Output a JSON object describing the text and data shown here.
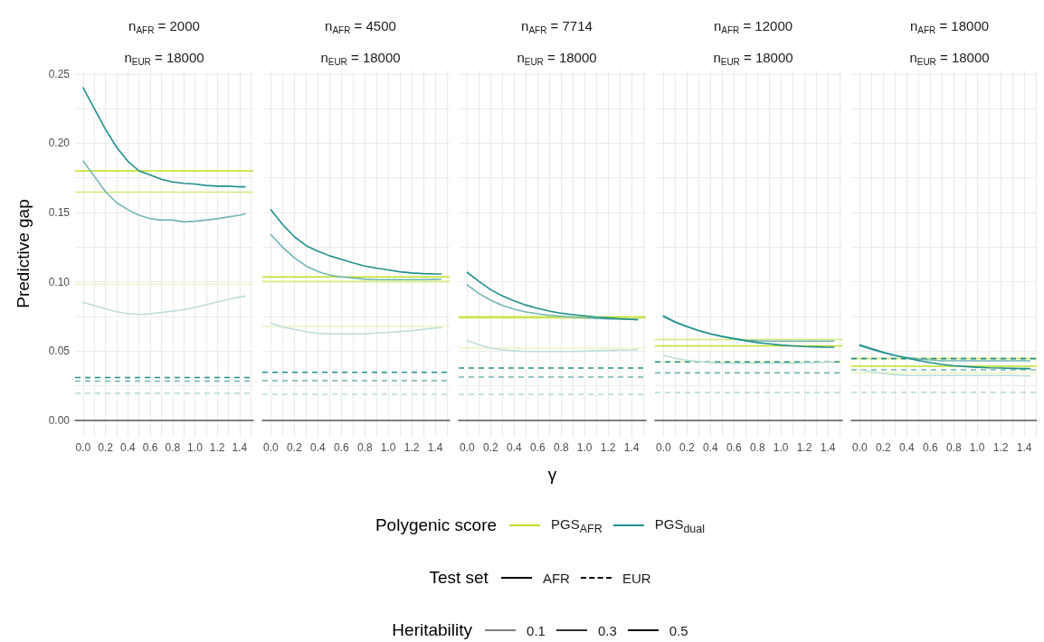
{
  "chart_data": [
    {
      "type": "line",
      "title": "n$_{AFR}$ = 2000",
      "subtitle": "n$_{EUR}$ = 18000",
      "ylabel": "Predictive gap",
      "grid": true,
      "xlim": [
        -0.0725,
        1.5225
      ],
      "ylim": [
        -0.012,
        0.2525
      ],
      "xticks": [
        {
          "value": 0,
          "label": "0.0"
        },
        {
          "value": 0.1,
          "label": null
        },
        {
          "value": 0.2,
          "label": "0.2"
        },
        {
          "value": 0.3,
          "label": null
        },
        {
          "value": 0.4,
          "label": "0.4"
        },
        {
          "value": 0.5,
          "label": null
        },
        {
          "value": 0.6,
          "label": "0.6"
        },
        {
          "value": 0.7,
          "label": null
        },
        {
          "value": 0.8,
          "label": "0.8"
        },
        {
          "value": 0.9,
          "label": null
        },
        {
          "value": 1,
          "label": "1.0"
        },
        {
          "value": 1.1,
          "label": null
        },
        {
          "value": 1.2,
          "label": "1.2"
        },
        {
          "value": 1.3,
          "label": null
        },
        {
          "value": 1.4,
          "label": "1.4"
        },
        {
          "value": 1.5,
          "label": null
        }
      ],
      "yticks": [
        {
          "value": 0,
          "label": "0.00"
        },
        {
          "value": 0.025,
          "label": null
        },
        {
          "value": 0.05,
          "label": "0.05"
        },
        {
          "value": 0.075,
          "label": null
        },
        {
          "value": 0.1,
          "label": "0.10"
        },
        {
          "value": 0.125,
          "label": null
        },
        {
          "value": 0.15,
          "label": "0.15"
        },
        {
          "value": 0.175,
          "label": null
        },
        {
          "value": 0.2,
          "label": "0.20"
        },
        {
          "value": 0.225,
          "label": null
        },
        {
          "value": 0.25,
          "label": "0.25"
        }
      ],
      "x": [
        0,
        0.1,
        0.2,
        0.3,
        0.4,
        0.5,
        0.6,
        0.7,
        0.8,
        0.9,
        1,
        1.1,
        1.2,
        1.3,
        1.4,
        1.45
      ],
      "ref_lines": [
        {
          "axis": "y",
          "value": 0.18,
          "color": "#bddf26"
        },
        {
          "axis": "y",
          "value": 0.1647,
          "color": "#d3e979"
        },
        {
          "axis": "y",
          "value": 0.098,
          "color": "#ebf5c4"
        },
        {
          "axis": "y",
          "value": 0.0308,
          "color": "#21908c",
          "line_style": "dashed"
        },
        {
          "axis": "y",
          "value": 0.0282,
          "color": "#73b5b3",
          "line_style": "dashed"
        },
        {
          "axis": "y",
          "value": 0.0194,
          "color": "#bcdddc",
          "line_style": "dashed"
        }
      ],
      "series": [
        {
          "color": "#bcdddc",
          "values": [
            0.085,
            0.0827,
            0.0804,
            0.0783,
            0.0768,
            0.0763,
            0.0768,
            0.0778,
            0.0787,
            0.0798,
            0.0814,
            0.0833,
            0.0853,
            0.0873,
            0.0888,
            0.0895
          ]
        },
        {
          "color": "#73b5b3",
          "values": [
            0.187,
            0.176,
            0.165,
            0.157,
            0.152,
            0.148,
            0.1455,
            0.1445,
            0.1445,
            0.1432,
            0.1437,
            0.1445,
            0.1455,
            0.1468,
            0.148,
            0.149
          ]
        },
        {
          "color": "#21908c",
          "values": [
            0.24,
            0.225,
            0.21,
            0.197,
            0.187,
            0.18,
            0.177,
            0.174,
            0.172,
            0.171,
            0.1705,
            0.1695,
            0.169,
            0.169,
            0.1685,
            0.1685
          ]
        }
      ]
    },
    {
      "type": "line",
      "title": "n$_{AFR}$ = 4500",
      "subtitle": "n$_{EUR}$ = 18000",
      "grid": true,
      "tick_labels": "x",
      "xlim": [
        -0.0725,
        1.5225
      ],
      "ylim": [
        -0.012,
        0.2525
      ],
      "xticks": [
        {
          "value": 0,
          "label": "0.0"
        },
        {
          "value": 0.1,
          "label": null
        },
        {
          "value": 0.2,
          "label": "0.2"
        },
        {
          "value": 0.3,
          "label": null
        },
        {
          "value": 0.4,
          "label": "0.4"
        },
        {
          "value": 0.5,
          "label": null
        },
        {
          "value": 0.6,
          "label": "0.6"
        },
        {
          "value": 0.7,
          "label": null
        },
        {
          "value": 0.8,
          "label": "0.8"
        },
        {
          "value": 0.9,
          "label": null
        },
        {
          "value": 1,
          "label": "1.0"
        },
        {
          "value": 1.1,
          "label": null
        },
        {
          "value": 1.2,
          "label": "1.2"
        },
        {
          "value": 1.3,
          "label": null
        },
        {
          "value": 1.4,
          "label": "1.4"
        },
        {
          "value": 1.5,
          "label": null
        }
      ],
      "yticks": [
        {
          "value": 0,
          "label": null
        },
        {
          "value": 0.025,
          "label": null
        },
        {
          "value": 0.05,
          "label": null
        },
        {
          "value": 0.075,
          "label": null
        },
        {
          "value": 0.1,
          "label": null
        },
        {
          "value": 0.125,
          "label": null
        },
        {
          "value": 0.15,
          "label": null
        },
        {
          "value": 0.175,
          "label": null
        },
        {
          "value": 0.2,
          "label": null
        },
        {
          "value": 0.225,
          "label": null
        },
        {
          "value": 0.25,
          "label": null
        }
      ],
      "x": [
        0,
        0.1,
        0.2,
        0.3,
        0.4,
        0.5,
        0.6,
        0.7,
        0.8,
        0.9,
        1,
        1.1,
        1.2,
        1.3,
        1.4,
        1.45
      ],
      "ref_lines": [
        {
          "axis": "y",
          "value": 0.1034,
          "color": "#bddf26"
        },
        {
          "axis": "y",
          "value": 0.1001,
          "color": "#d3e979"
        },
        {
          "axis": "y",
          "value": 0.0677,
          "color": "#ebf5c4"
        },
        {
          "axis": "y",
          "value": 0.0345,
          "color": "#21908c",
          "line_style": "dashed"
        },
        {
          "axis": "y",
          "value": 0.0285,
          "color": "#73b5b3",
          "line_style": "dashed"
        },
        {
          "axis": "y",
          "value": 0.0187,
          "color": "#bcdddc",
          "line_style": "dashed"
        }
      ],
      "series": [
        {
          "color": "#bcdddc",
          "values": [
            0.0701,
            0.0672,
            0.0656,
            0.0638,
            0.0627,
            0.0623,
            0.0623,
            0.0623,
            0.0623,
            0.0629,
            0.0633,
            0.064,
            0.0646,
            0.0656,
            0.0665,
            0.0667
          ]
        },
        {
          "color": "#73b5b3",
          "values": [
            0.134,
            0.1249,
            0.1172,
            0.1113,
            0.1074,
            0.1047,
            0.1034,
            0.1026,
            0.1019,
            0.1015,
            0.1015,
            0.1015,
            0.1015,
            0.1015,
            0.1017,
            0.1018
          ]
        },
        {
          "color": "#21908c",
          "values": [
            0.152,
            0.1413,
            0.1325,
            0.126,
            0.122,
            0.1187,
            0.1161,
            0.1135,
            0.1113,
            0.1098,
            0.1085,
            0.1071,
            0.1063,
            0.1058,
            0.1056,
            0.1056
          ]
        }
      ]
    },
    {
      "type": "line",
      "title": "n$_{AFR}$ = 7714",
      "subtitle": "n$_{EUR}$ = 18000",
      "xlabel": "γ",
      "grid": true,
      "tick_labels": "x",
      "xlim": [
        -0.0725,
        1.5225
      ],
      "ylim": [
        -0.012,
        0.2525
      ],
      "xticks": [
        {
          "value": 0,
          "label": "0.0"
        },
        {
          "value": 0.1,
          "label": null
        },
        {
          "value": 0.2,
          "label": "0.2"
        },
        {
          "value": 0.3,
          "label": null
        },
        {
          "value": 0.4,
          "label": "0.4"
        },
        {
          "value": 0.5,
          "label": null
        },
        {
          "value": 0.6,
          "label": "0.6"
        },
        {
          "value": 0.7,
          "label": null
        },
        {
          "value": 0.8,
          "label": "0.8"
        },
        {
          "value": 0.9,
          "label": null
        },
        {
          "value": 1,
          "label": "1.0"
        },
        {
          "value": 1.1,
          "label": null
        },
        {
          "value": 1.2,
          "label": "1.2"
        },
        {
          "value": 1.3,
          "label": null
        },
        {
          "value": 1.4,
          "label": "1.4"
        },
        {
          "value": 1.5,
          "label": null
        }
      ],
      "yticks": [
        {
          "value": 0,
          "label": null
        },
        {
          "value": 0.025,
          "label": null
        },
        {
          "value": 0.05,
          "label": null
        },
        {
          "value": 0.075,
          "label": null
        },
        {
          "value": 0.1,
          "label": null
        },
        {
          "value": 0.125,
          "label": null
        },
        {
          "value": 0.15,
          "label": null
        },
        {
          "value": 0.175,
          "label": null
        },
        {
          "value": 0.2,
          "label": null
        },
        {
          "value": 0.225,
          "label": null
        },
        {
          "value": 0.25,
          "label": null
        }
      ],
      "x": [
        0,
        0.1,
        0.2,
        0.3,
        0.4,
        0.5,
        0.6,
        0.7,
        0.8,
        0.9,
        1,
        1.1,
        1.2,
        1.3,
        1.4,
        1.45
      ],
      "ref_lines": [
        {
          "axis": "y",
          "value": 0.0745,
          "color": "#bddf26"
        },
        {
          "axis": "y",
          "value": 0.0737,
          "color": "#d3e979"
        },
        {
          "axis": "y",
          "value": 0.052,
          "color": "#ebf5c4"
        },
        {
          "axis": "y",
          "value": 0.0376,
          "color": "#21908c",
          "line_style": "dashed"
        },
        {
          "axis": "y",
          "value": 0.0311,
          "color": "#73b5b3",
          "line_style": "dashed"
        },
        {
          "axis": "y",
          "value": 0.0186,
          "color": "#bcdddc",
          "line_style": "dashed"
        }
      ],
      "series": [
        {
          "color": "#bcdddc",
          "values": [
            0.0576,
            0.0545,
            0.052,
            0.0507,
            0.0501,
            0.0496,
            0.0496,
            0.0496,
            0.0496,
            0.0496,
            0.0498,
            0.0501,
            0.0503,
            0.0505,
            0.0507,
            0.0509
          ]
        },
        {
          "color": "#73b5b3",
          "values": [
            0.0976,
            0.0914,
            0.0866,
            0.0829,
            0.0801,
            0.0781,
            0.0768,
            0.0757,
            0.075,
            0.0744,
            0.0739,
            0.0735,
            0.0731,
            0.0729,
            0.0727,
            0.0727
          ]
        },
        {
          "color": "#21908c",
          "values": [
            0.1067,
            0.1002,
            0.0942,
            0.0897,
            0.0862,
            0.0831,
            0.0807,
            0.0788,
            0.0772,
            0.0762,
            0.0753,
            0.0744,
            0.0738,
            0.0732,
            0.0727,
            0.0725
          ]
        }
      ]
    },
    {
      "type": "line",
      "title": "n$_{AFR}$ = 12000",
      "subtitle": "n$_{EUR}$ = 18000",
      "grid": true,
      "tick_labels": "x",
      "xlim": [
        -0.0725,
        1.5225
      ],
      "ylim": [
        -0.012,
        0.2525
      ],
      "xticks": [
        {
          "value": 0,
          "label": "0.0"
        },
        {
          "value": 0.1,
          "label": null
        },
        {
          "value": 0.2,
          "label": "0.2"
        },
        {
          "value": 0.3,
          "label": null
        },
        {
          "value": 0.4,
          "label": "0.4"
        },
        {
          "value": 0.5,
          "label": null
        },
        {
          "value": 0.6,
          "label": "0.6"
        },
        {
          "value": 0.7,
          "label": null
        },
        {
          "value": 0.8,
          "label": "0.8"
        },
        {
          "value": 0.9,
          "label": null
        },
        {
          "value": 1,
          "label": "1.0"
        },
        {
          "value": 1.1,
          "label": null
        },
        {
          "value": 1.2,
          "label": "1.2"
        },
        {
          "value": 1.3,
          "label": null
        },
        {
          "value": 1.4,
          "label": "1.4"
        },
        {
          "value": 1.5,
          "label": null
        }
      ],
      "yticks": [
        {
          "value": 0,
          "label": null
        },
        {
          "value": 0.025,
          "label": null
        },
        {
          "value": 0.05,
          "label": null
        },
        {
          "value": 0.075,
          "label": null
        },
        {
          "value": 0.1,
          "label": null
        },
        {
          "value": 0.125,
          "label": null
        },
        {
          "value": 0.15,
          "label": null
        },
        {
          "value": 0.175,
          "label": null
        },
        {
          "value": 0.2,
          "label": null
        },
        {
          "value": 0.225,
          "label": null
        },
        {
          "value": 0.25,
          "label": null
        }
      ],
      "x": [
        0,
        0.1,
        0.2,
        0.3,
        0.4,
        0.5,
        0.6,
        0.7,
        0.8,
        0.9,
        1,
        1.1,
        1.2,
        1.3,
        1.4,
        1.45
      ],
      "ref_lines": [
        {
          "axis": "y",
          "value": 0.0536,
          "color": "#bddf26"
        },
        {
          "axis": "y",
          "value": 0.0582,
          "color": "#d3e979"
        },
        {
          "axis": "y",
          "value": 0.0422,
          "color": "#ebf5c4"
        },
        {
          "axis": "y",
          "value": 0.042,
          "color": "#21908c",
          "line_style": "dashed"
        },
        {
          "axis": "y",
          "value": 0.0341,
          "color": "#73b5b3",
          "line_style": "dashed"
        },
        {
          "axis": "y",
          "value": 0.0199,
          "color": "#bcdddc",
          "line_style": "dashed"
        }
      ],
      "series": [
        {
          "color": "#bcdddc",
          "values": [
            0.0468,
            0.0446,
            0.0433,
            0.0422,
            0.0415,
            0.0411,
            0.0411,
            0.0411,
            0.0411,
            0.0411,
            0.0411,
            0.0411,
            0.0413,
            0.0415,
            0.0418,
            0.0418
          ]
        },
        {
          "color": "#73b5b3",
          "values": [
            0.0747,
            0.0706,
            0.0674,
            0.0646,
            0.0623,
            0.0605,
            0.059,
            0.0577,
            0.0573,
            0.0571,
            0.0571,
            0.0571,
            0.0571,
            0.0571,
            0.0571,
            0.0571
          ]
        },
        {
          "color": "#21908c",
          "values": [
            0.0752,
            0.0709,
            0.0676,
            0.0647,
            0.0623,
            0.0604,
            0.0588,
            0.0573,
            0.056,
            0.0551,
            0.0542,
            0.0536,
            0.0531,
            0.0529,
            0.0527,
            0.0527
          ]
        }
      ]
    },
    {
      "type": "line",
      "title": "n$_{AFR}$ = 18000",
      "subtitle": "n$_{EUR}$ = 18000",
      "grid": true,
      "tick_labels": "x",
      "xlim": [
        -0.0725,
        1.5225
      ],
      "ylim": [
        -0.012,
        0.2525
      ],
      "xticks": [
        {
          "value": 0,
          "label": "0.0"
        },
        {
          "value": 0.1,
          "label": null
        },
        {
          "value": 0.2,
          "label": "0.2"
        },
        {
          "value": 0.3,
          "label": null
        },
        {
          "value": 0.4,
          "label": "0.4"
        },
        {
          "value": 0.5,
          "label": null
        },
        {
          "value": 0.6,
          "label": "0.6"
        },
        {
          "value": 0.7,
          "label": null
        },
        {
          "value": 0.8,
          "label": "0.8"
        },
        {
          "value": 0.9,
          "label": null
        },
        {
          "value": 1,
          "label": "1.0"
        },
        {
          "value": 1.1,
          "label": null
        },
        {
          "value": 1.2,
          "label": "1.2"
        },
        {
          "value": 1.3,
          "label": null
        },
        {
          "value": 1.4,
          "label": "1.4"
        },
        {
          "value": 1.5,
          "label": null
        }
      ],
      "yticks": [
        {
          "value": 0,
          "label": null
        },
        {
          "value": 0.025,
          "label": null
        },
        {
          "value": 0.05,
          "label": null
        },
        {
          "value": 0.075,
          "label": null
        },
        {
          "value": 0.1,
          "label": null
        },
        {
          "value": 0.125,
          "label": null
        },
        {
          "value": 0.15,
          "label": null
        },
        {
          "value": 0.175,
          "label": null
        },
        {
          "value": 0.2,
          "label": null
        },
        {
          "value": 0.225,
          "label": null
        },
        {
          "value": 0.25,
          "label": null
        }
      ],
      "x": [
        0,
        0.1,
        0.2,
        0.3,
        0.4,
        0.5,
        0.6,
        0.7,
        0.8,
        0.9,
        1,
        1.1,
        1.2,
        1.3,
        1.4,
        1.45
      ],
      "ref_lines": [
        {
          "axis": "y",
          "value": 0.0389,
          "color": "#bddf26"
        },
        {
          "axis": "y",
          "value": 0.0446,
          "color": "#d3e979"
        },
        {
          "axis": "y",
          "value": 0.0341,
          "color": "#ebf5c4"
        },
        {
          "axis": "y",
          "value": 0.0444,
          "color": "#21908c",
          "line_style": "dashed"
        },
        {
          "axis": "y",
          "value": 0.0363,
          "color": "#73b5b3",
          "line_style": "dashed"
        },
        {
          "axis": "y",
          "value": 0.0201,
          "color": "#bcdddc",
          "line_style": "dashed"
        }
      ],
      "series": [
        {
          "color": "#bcdddc",
          "values": [
            0.0363,
            0.035,
            0.0337,
            0.0328,
            0.0322,
            0.0322,
            0.0322,
            0.0322,
            0.0322,
            0.0322,
            0.0322,
            0.0322,
            0.0322,
            0.0322,
            0.032,
            0.032
          ]
        },
        {
          "color": "#73b5b3",
          "values": [
            0.0538,
            0.051,
            0.0486,
            0.0466,
            0.0452,
            0.0441,
            0.0435,
            0.0429,
            0.0429,
            0.0429,
            0.0429,
            0.0429,
            0.0429,
            0.0429,
            0.0429,
            0.0429
          ]
        },
        {
          "color": "#21908c",
          "values": [
            0.0542,
            0.0516,
            0.049,
            0.0468,
            0.0448,
            0.0431,
            0.0415,
            0.0402,
            0.0393,
            0.0387,
            0.0382,
            0.0378,
            0.0376,
            0.0374,
            0.0372,
            0.0372
          ]
        }
      ]
    },
    {
      "type": "other",
      "annotations": [
        "Polygenic score",
        "PGS$_{AFR}$",
        "PGS$_{dual}$",
        "Test set",
        "AFR",
        "EUR",
        "Heritability",
        "0.1",
        "0.3",
        "0.5"
      ]
    }
  ]
}
